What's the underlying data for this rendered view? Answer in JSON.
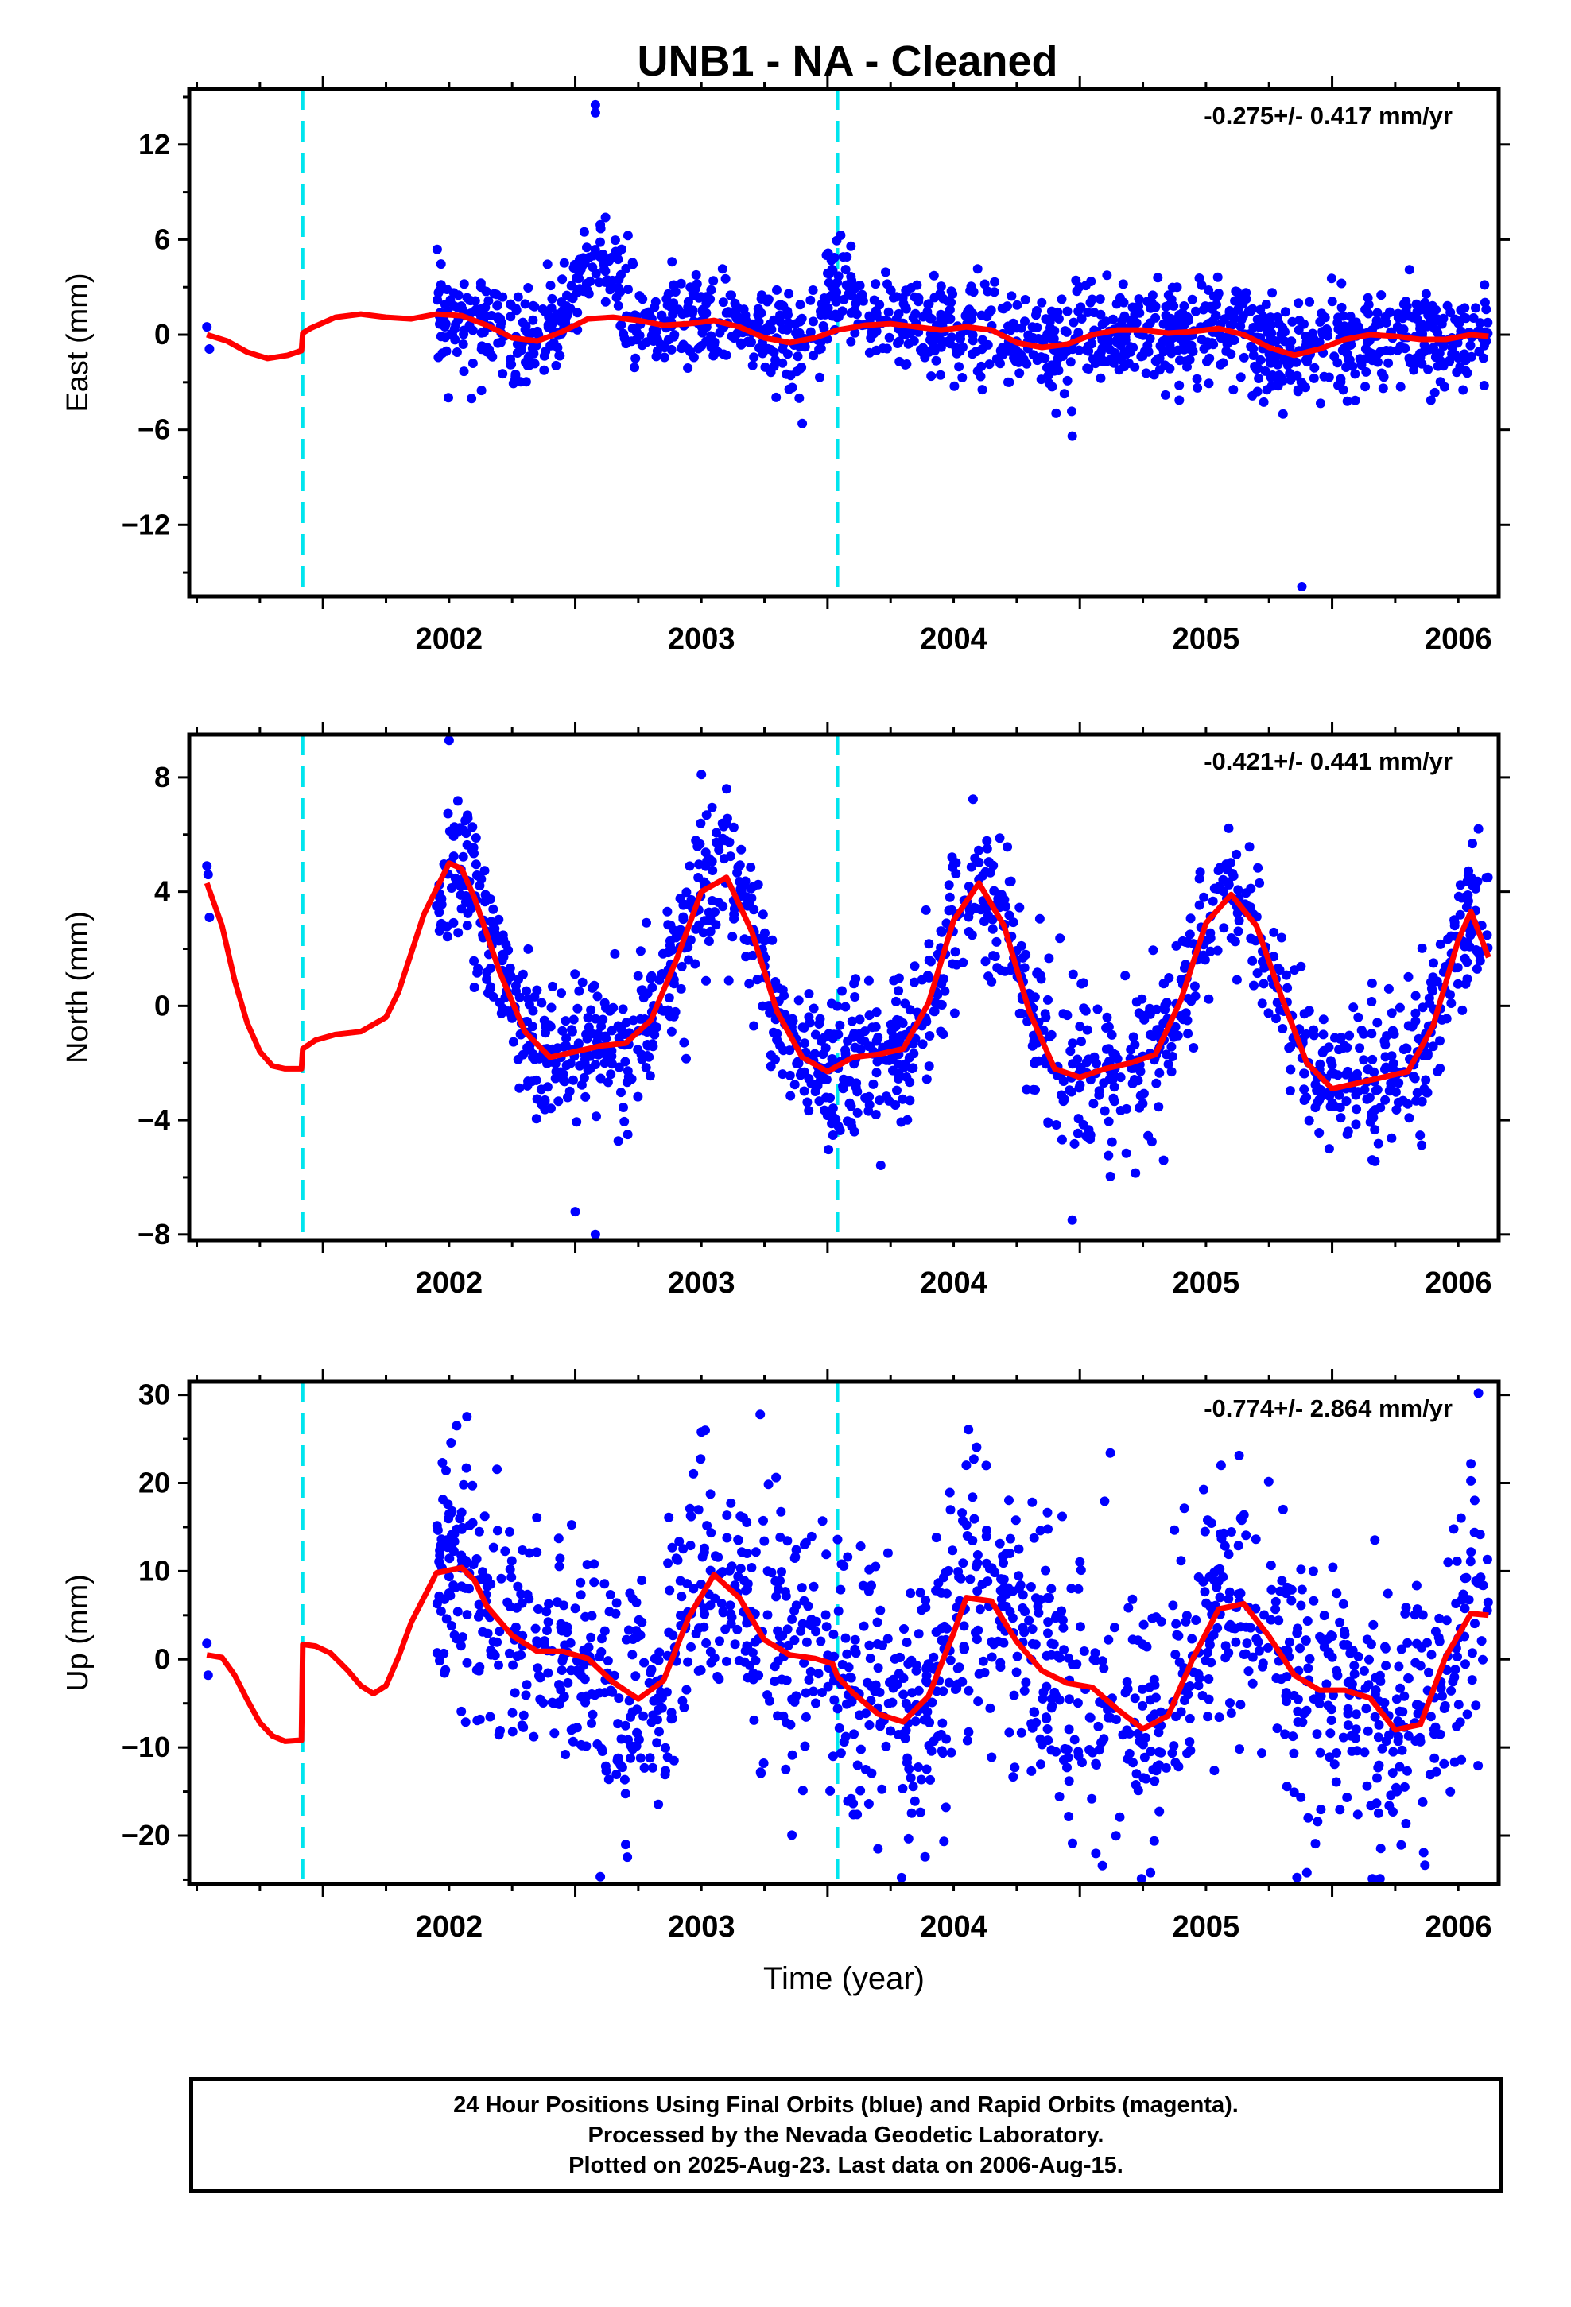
{
  "title": "UNB1  - NA - Cleaned",
  "colors": {
    "data": "#0000ff",
    "model": "#ff0000",
    "break": "#00e5ee",
    "frame": "#000000"
  },
  "chart_data": [
    {
      "type": "scatter",
      "panel": "East",
      "ylabel": "East (mm)",
      "xlabel": "",
      "rate_text": "-0.275+/- 0.417 mm/yr",
      "xlim": [
        2001.47,
        2006.66
      ],
      "ylim": [
        -16.5,
        15.5
      ],
      "yticks": [
        -12,
        -6,
        0,
        6,
        12
      ],
      "ytick_labels": [
        "−12",
        "−6",
        "0",
        "6",
        "12"
      ],
      "xticks": [
        2002,
        2003,
        2004,
        2005,
        2006
      ],
      "breaks": [
        2001.92,
        2004.04
      ],
      "series": [
        {
          "role": "data",
          "x_start": 2002.45,
          "x_end": 2006.62,
          "early_x": [
            2001.54,
            2001.55
          ],
          "early_y": [
            0.5,
            -0.9
          ],
          "annual_amp": [
            0.3,
            0.5,
            0.6,
            0.4,
            0.4
          ],
          "noise_sd": 1.5,
          "outliers": [
            [
              2003.08,
              14.5
            ],
            [
              2003.08,
              14.0
            ],
            [
              2003.12,
              7.4
            ],
            [
              2003.9,
              -5.6
            ],
            [
              2004.97,
              -6.4
            ],
            [
              2005.88,
              -15.9
            ]
          ],
          "bumps": [
            [
              2003.08,
              0.14,
              3.6
            ],
            [
              2004.05,
              0.08,
              2.6
            ]
          ]
        },
        {
          "role": "model",
          "x": [
            2001.54,
            2001.62,
            2001.7,
            2001.78,
            2001.86,
            2001.915,
            2001.92,
            2001.95,
            2002.05,
            2002.15,
            2002.25,
            2002.35,
            2002.45,
            2002.55,
            2002.65,
            2002.75,
            2002.85,
            2002.95,
            2003.05,
            2003.15,
            2003.25,
            2003.35,
            2003.45,
            2003.55,
            2003.65,
            2003.75,
            2003.85,
            2003.95,
            2004.04,
            2004.15,
            2004.25,
            2004.35,
            2004.45,
            2004.55,
            2004.65,
            2004.75,
            2004.85,
            2004.95,
            2005.05,
            2005.15,
            2005.25,
            2005.35,
            2005.45,
            2005.55,
            2005.65,
            2005.75,
            2005.85,
            2005.95,
            2006.05,
            2006.15,
            2006.25,
            2006.35,
            2006.45,
            2006.55,
            2006.62
          ],
          "y": [
            0.0,
            -0.4,
            -1.1,
            -1.5,
            -1.3,
            -1.0,
            0.1,
            0.4,
            1.1,
            1.3,
            1.1,
            1.0,
            1.3,
            1.2,
            0.6,
            -0.2,
            -0.4,
            0.2,
            1.0,
            1.1,
            0.9,
            0.6,
            0.7,
            0.9,
            0.5,
            -0.2,
            -0.5,
            -0.2,
            0.3,
            0.6,
            0.7,
            0.5,
            0.3,
            0.5,
            0.3,
            -0.5,
            -0.8,
            -0.6,
            0.0,
            0.3,
            0.3,
            0.1,
            0.2,
            0.4,
            0.0,
            -0.8,
            -1.3,
            -0.9,
            -0.3,
            0.0,
            -0.1,
            -0.3,
            -0.3,
            0.0,
            -0.1
          ]
        }
      ]
    },
    {
      "type": "scatter",
      "panel": "North",
      "ylabel": "North (mm)",
      "xlabel": "",
      "rate_text": "-0.421+/- 0.441 mm/yr",
      "xlim": [
        2001.47,
        2006.66
      ],
      "ylim": [
        -8.2,
        9.5
      ],
      "yticks": [
        -8,
        -4,
        0,
        4,
        8
      ],
      "ytick_labels": [
        "−8",
        "−4",
        "0",
        "4",
        "8"
      ],
      "xticks": [
        2002,
        2003,
        2004,
        2005,
        2006
      ],
      "breaks": [
        2001.92,
        2004.04
      ],
      "series": [
        {
          "role": "data",
          "x_start": 2002.45,
          "x_end": 2006.62,
          "early_x": [
            2001.54,
            2001.545,
            2001.55
          ],
          "early_y": [
            4.9,
            4.6,
            3.1
          ],
          "annual_amp": [
            3.3,
            3.3,
            3.3,
            3.3,
            3.3
          ],
          "noise_sd": 1.3,
          "outliers": [
            [
              2002.5,
              9.3
            ],
            [
              2003.08,
              -8.0
            ],
            [
              2003.0,
              -7.2
            ],
            [
              2003.5,
              8.1
            ],
            [
              2004.97,
              -7.5
            ],
            [
              2006.58,
              6.2
            ]
          ],
          "bumps": []
        },
        {
          "role": "model",
          "x": [
            2001.54,
            2001.6,
            2001.65,
            2001.7,
            2001.75,
            2001.8,
            2001.85,
            2001.9,
            2001.915,
            2001.92,
            2001.97,
            2002.05,
            2002.15,
            2002.25,
            2002.3,
            2002.4,
            2002.5,
            2002.55,
            2002.6,
            2002.65,
            2002.7,
            2002.8,
            2002.9,
            2003.0,
            2003.1,
            2003.2,
            2003.3,
            2003.4,
            2003.5,
            2003.6,
            2003.7,
            2003.8,
            2003.9,
            2004.0,
            2004.04,
            2004.1,
            2004.2,
            2004.3,
            2004.4,
            2004.5,
            2004.6,
            2004.7,
            2004.8,
            2004.9,
            2005.0,
            2005.1,
            2005.2,
            2005.3,
            2005.4,
            2005.5,
            2005.6,
            2005.7,
            2005.8,
            2005.9,
            2006.0,
            2006.1,
            2006.2,
            2006.3,
            2006.4,
            2006.5,
            2006.55,
            2006.62
          ],
          "y": [
            4.3,
            2.8,
            0.9,
            -0.6,
            -1.6,
            -2.1,
            -2.2,
            -2.2,
            -2.2,
            -1.5,
            -1.2,
            -1.0,
            -0.9,
            -0.4,
            0.5,
            3.2,
            5.0,
            4.8,
            3.8,
            2.5,
            1.2,
            -0.9,
            -1.8,
            -1.6,
            -1.4,
            -1.3,
            -0.5,
            1.6,
            4.0,
            4.5,
            2.6,
            -0.2,
            -1.8,
            -2.3,
            -2.1,
            -1.8,
            -1.7,
            -1.5,
            0.1,
            3.0,
            4.3,
            2.8,
            -0.2,
            -2.2,
            -2.5,
            -2.2,
            -2.0,
            -1.7,
            0.2,
            2.9,
            3.9,
            2.8,
            0.3,
            -2.0,
            -2.9,
            -2.7,
            -2.5,
            -2.3,
            -0.7,
            2.3,
            3.3,
            1.7
          ]
        }
      ]
    },
    {
      "type": "scatter",
      "panel": "Up",
      "ylabel": "Up (mm)",
      "xlabel": "Time (year)",
      "rate_text": "-0.774+/- 2.864 mm/yr",
      "xlim": [
        2001.47,
        2006.66
      ],
      "ylim": [
        -25.5,
        31.5
      ],
      "yticks": [
        -20,
        -10,
        0,
        10,
        20,
        30
      ],
      "ytick_labels": [
        "−20",
        "−10",
        "0",
        "10",
        "20",
        "30"
      ],
      "xticks": [
        2002,
        2003,
        2004,
        2005,
        2006
      ],
      "breaks": [
        2001.92,
        2004.04
      ],
      "series": [
        {
          "role": "data",
          "x_start": 2002.45,
          "x_end": 2006.62,
          "early_x": [
            2001.54,
            2001.545
          ],
          "early_y": [
            1.8,
            -1.8
          ],
          "annual_amp": [
            10,
            10,
            10,
            10,
            10
          ],
          "noise_sd": 7.5,
          "outliers": [
            [
              2002.53,
              26.5
            ],
            [
              2003.5,
              25.8
            ],
            [
              2005.56,
              22.0
            ],
            [
              2006.58,
              30.2
            ],
            [
              2005.28,
              -24.2
            ],
            [
              2005.9,
              -24.2
            ],
            [
              2003.2,
              -21.0
            ],
            [
              2004.2,
              -21.5
            ]
          ],
          "bumps": []
        },
        {
          "role": "model",
          "x": [
            2001.54,
            2001.6,
            2001.65,
            2001.7,
            2001.75,
            2001.8,
            2001.85,
            2001.9,
            2001.915,
            2001.92,
            2001.97,
            2002.03,
            2002.1,
            2002.15,
            2002.2,
            2002.25,
            2002.3,
            2002.35,
            2002.45,
            2002.55,
            2002.6,
            2002.65,
            2002.75,
            2002.85,
            2002.95,
            2003.05,
            2003.15,
            2003.25,
            2003.35,
            2003.45,
            2003.55,
            2003.65,
            2003.75,
            2003.85,
            2003.95,
            2004.02,
            2004.04,
            2004.1,
            2004.2,
            2004.3,
            2004.4,
            2004.5,
            2004.55,
            2004.65,
            2004.75,
            2004.85,
            2004.95,
            2005.05,
            2005.15,
            2005.25,
            2005.35,
            2005.45,
            2005.55,
            2005.65,
            2005.75,
            2005.85,
            2005.95,
            2006.05,
            2006.15,
            2006.25,
            2006.35,
            2006.45,
            2006.55,
            2006.62
          ],
          "y": [
            0.5,
            0.2,
            -1.8,
            -4.6,
            -7.2,
            -8.7,
            -9.3,
            -9.2,
            -9.2,
            1.7,
            1.5,
            0.7,
            -1.3,
            -3.0,
            -3.9,
            -3.0,
            0.3,
            4.2,
            9.8,
            10.4,
            9.0,
            6.0,
            2.7,
            0.9,
            0.9,
            0.1,
            -2.6,
            -4.5,
            -2.4,
            4.8,
            9.6,
            7.0,
            2.2,
            0.5,
            0.1,
            -0.5,
            -2.0,
            -3.8,
            -6.2,
            -7.1,
            -4.2,
            3.0,
            7.0,
            6.6,
            2.0,
            -1.3,
            -2.7,
            -3.2,
            -5.7,
            -7.9,
            -6.4,
            0.2,
            5.7,
            6.3,
            2.6,
            -1.8,
            -3.5,
            -3.5,
            -4.4,
            -8.0,
            -7.4,
            0.3,
            5.2,
            5.0
          ]
        }
      ]
    }
  ],
  "footer": {
    "line1": "24 Hour Positions Using Final Orbits (blue) and Rapid Orbits (magenta).",
    "line2": "Processed by the Nevada Geodetic Laboratory.",
    "line3": "Plotted on 2025-Aug-23. Last data on 2006-Aug-15."
  }
}
